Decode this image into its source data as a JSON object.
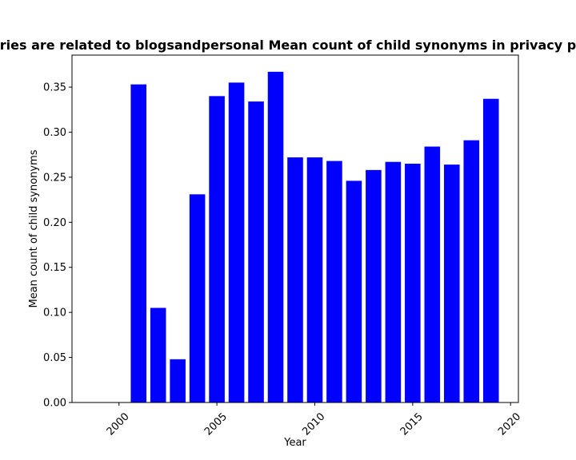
{
  "chart_data": {
    "type": "bar",
    "title": "ries are related to blogsandpersonal Mean count of child synonyms in privacy p",
    "xlabel": "Year",
    "ylabel": "Mean count of child synonyms",
    "bar_color": "#0000ff",
    "x": [
      2001,
      2002,
      2003,
      2004,
      2005,
      2006,
      2007,
      2008,
      2009,
      2010,
      2011,
      2012,
      2013,
      2014,
      2015,
      2016,
      2017,
      2018,
      2019
    ],
    "values": [
      0.353,
      0.105,
      0.048,
      0.231,
      0.34,
      0.355,
      0.334,
      0.367,
      0.272,
      0.272,
      0.268,
      0.246,
      0.258,
      0.267,
      0.265,
      0.284,
      0.264,
      0.291,
      0.337
    ],
    "xlim": [
      1997.6,
      2020.4
    ],
    "ylim": [
      0,
      0.3855
    ],
    "xticks": [
      "2000",
      "2005",
      "2010",
      "2015",
      "2020"
    ],
    "yticks": [
      "0.00",
      "0.05",
      "0.10",
      "0.15",
      "0.20",
      "0.25",
      "0.30",
      "0.35"
    ],
    "grid": false
  }
}
